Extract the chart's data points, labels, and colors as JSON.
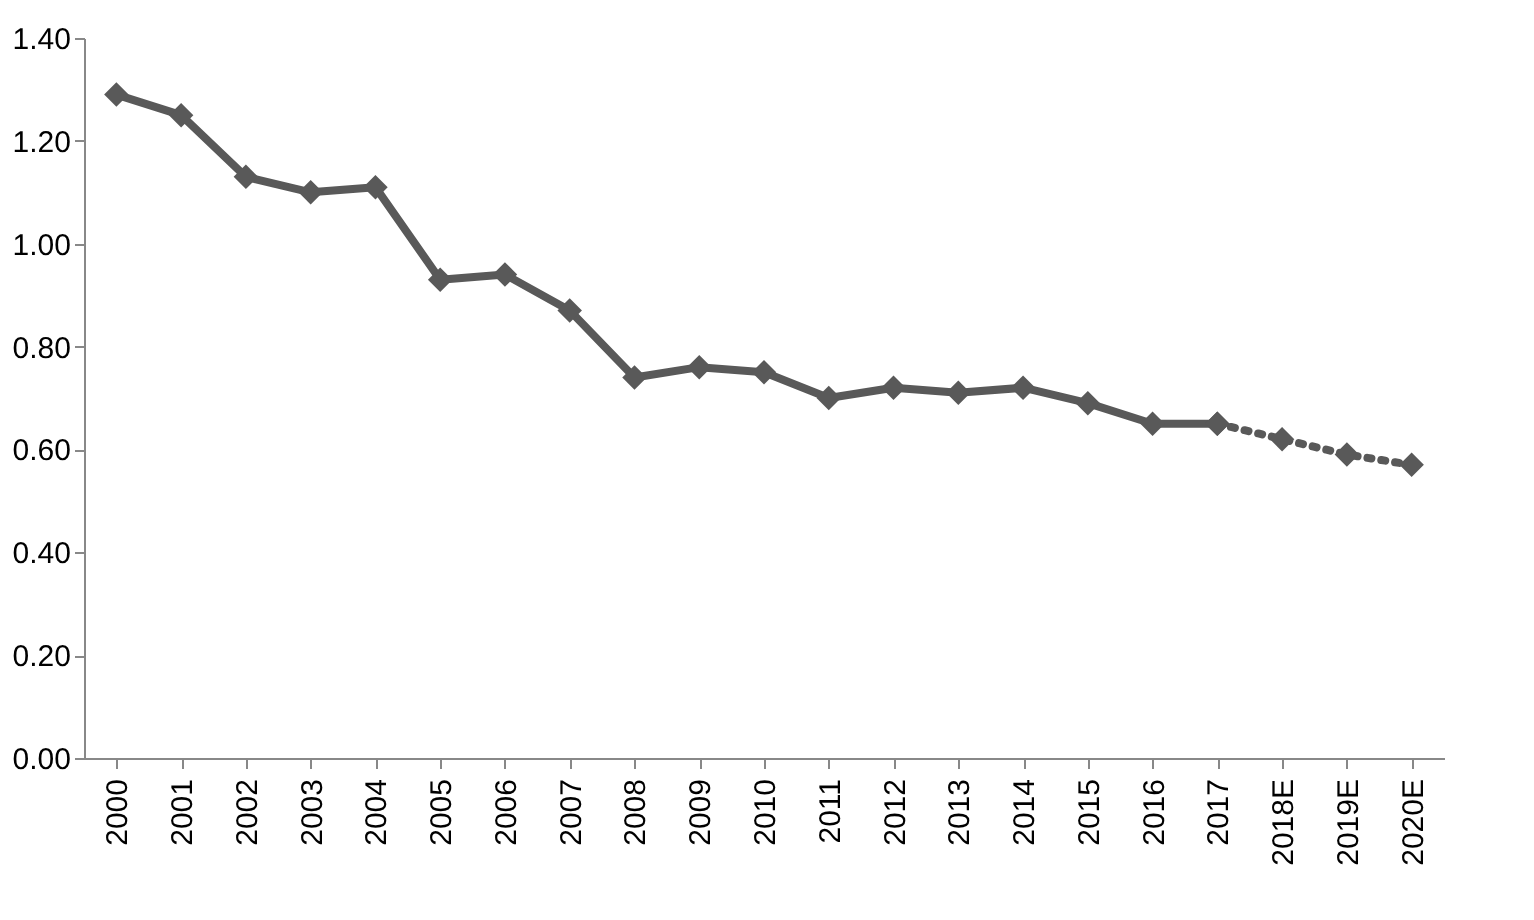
{
  "chart_data": {
    "type": "line",
    "categories": [
      "2000",
      "2001",
      "2002",
      "2003",
      "2004",
      "2005",
      "2006",
      "2007",
      "2008",
      "2009",
      "2010",
      "2011",
      "2012",
      "2013",
      "2014",
      "2015",
      "2016",
      "2017",
      "2018E",
      "2019E",
      "2020E"
    ],
    "series": [
      {
        "color": "#595959",
        "line_style": "solid",
        "values": [
          1.29,
          1.25,
          1.13,
          1.1,
          1.11,
          0.93,
          0.94,
          0.87,
          0.74,
          0.76,
          0.75,
          0.7,
          0.72,
          0.71,
          0.72,
          0.69,
          0.65,
          0.65,
          null,
          null,
          null
        ]
      },
      {
        "color": "#595959",
        "line_style": "dotted",
        "values": [
          null,
          null,
          null,
          null,
          null,
          null,
          null,
          null,
          null,
          null,
          null,
          null,
          null,
          null,
          null,
          null,
          null,
          0.65,
          0.62,
          0.59,
          0.57
        ]
      }
    ],
    "marker": "diamond",
    "ylim": [
      0,
      1.4
    ],
    "yticks": [
      {
        "value": 0,
        "label": "0.00"
      },
      {
        "value": 0.2,
        "label": "0.20"
      },
      {
        "value": 0.4,
        "label": "0.40"
      },
      {
        "value": 0.6,
        "label": "0.60"
      },
      {
        "value": 0.8,
        "label": "0.80"
      },
      {
        "value": 1.0,
        "label": "1.00"
      },
      {
        "value": 1.2,
        "label": "1.20"
      },
      {
        "value": 1.4,
        "label": "1.40"
      }
    ],
    "grid": false
  }
}
